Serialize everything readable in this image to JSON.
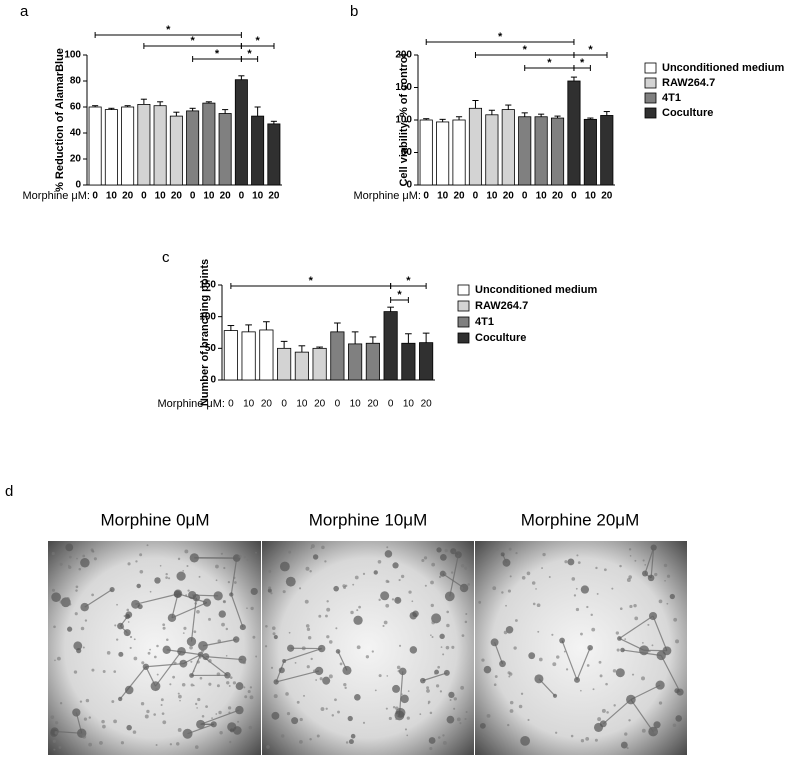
{
  "chart_data": [
    {
      "type": "bar",
      "panel_label": "a",
      "ylabel": "% Reduction of AlamarBlue",
      "x_label": "Morphine μM:",
      "categories": [
        "0",
        "10",
        "20"
      ],
      "series": [
        {
          "color": "#ffffff",
          "values": [
            60,
            58,
            60
          ],
          "errors": [
            1,
            1,
            1
          ]
        },
        {
          "color": "#d3d3d3",
          "values": [
            62,
            61,
            53
          ],
          "errors": [
            4,
            3,
            3
          ]
        },
        {
          "color": "#808080",
          "values": [
            57,
            63,
            55
          ],
          "errors": [
            2,
            1,
            3
          ]
        },
        {
          "color": "#303030",
          "values": [
            81,
            53,
            47
          ],
          "errors": [
            3,
            7,
            2
          ]
        }
      ],
      "ylim": [
        0,
        100
      ],
      "yticks": [
        0,
        20,
        40,
        60,
        80,
        100
      ],
      "significance": [
        "*",
        "*",
        "*",
        "*",
        "*"
      ]
    },
    {
      "type": "bar",
      "panel_label": "b",
      "ylabel": "Cell viability, % of control",
      "x_label": "Morphine μM:",
      "categories": [
        "0",
        "10",
        "20"
      ],
      "series": [
        {
          "name": "Unconditioned medium",
          "color": "#ffffff",
          "values": [
            100,
            97,
            100
          ],
          "errors": [
            2,
            4,
            5
          ]
        },
        {
          "name": "RAW264.7",
          "color": "#d3d3d3",
          "values": [
            118,
            108,
            116
          ],
          "errors": [
            12,
            7,
            7
          ]
        },
        {
          "name": "4T1",
          "color": "#808080",
          "values": [
            105,
            105,
            103
          ],
          "errors": [
            6,
            4,
            3
          ]
        },
        {
          "name": "Coculture",
          "color": "#303030",
          "values": [
            160,
            101,
            107
          ],
          "errors": [
            6,
            2,
            6
          ]
        }
      ],
      "ylim": [
        0,
        200
      ],
      "yticks": [
        0,
        50,
        100,
        150,
        200
      ],
      "significance": [
        "*",
        "*",
        "*",
        "*",
        "*"
      ]
    },
    {
      "type": "bar",
      "panel_label": "c",
      "ylabel": "Number of branching points",
      "x_label": "Morphine μM:",
      "categories": [
        "0",
        "10",
        "20"
      ],
      "series": [
        {
          "name": "Unconditioned medium",
          "color": "#ffffff",
          "values": [
            78,
            76,
            79
          ],
          "errors": [
            8,
            11,
            13
          ]
        },
        {
          "name": "RAW264.7",
          "color": "#d3d3d3",
          "values": [
            50,
            44,
            50
          ],
          "errors": [
            11,
            10,
            2
          ]
        },
        {
          "name": "4T1",
          "color": "#808080",
          "values": [
            76,
            57,
            58
          ],
          "errors": [
            14,
            19,
            10
          ]
        },
        {
          "name": "Coculture",
          "color": "#303030",
          "values": [
            108,
            58,
            59
          ],
          "errors": [
            7,
            15,
            15
          ]
        }
      ],
      "ylim": [
        0,
        150
      ],
      "yticks": [
        0,
        50,
        100,
        150
      ],
      "significance": [
        "*",
        "*",
        "*"
      ]
    }
  ],
  "panel_d": {
    "label": "d",
    "titles": [
      "Morphine 0μM",
      "Morphine 10μM",
      "Morphine 20μM"
    ]
  }
}
